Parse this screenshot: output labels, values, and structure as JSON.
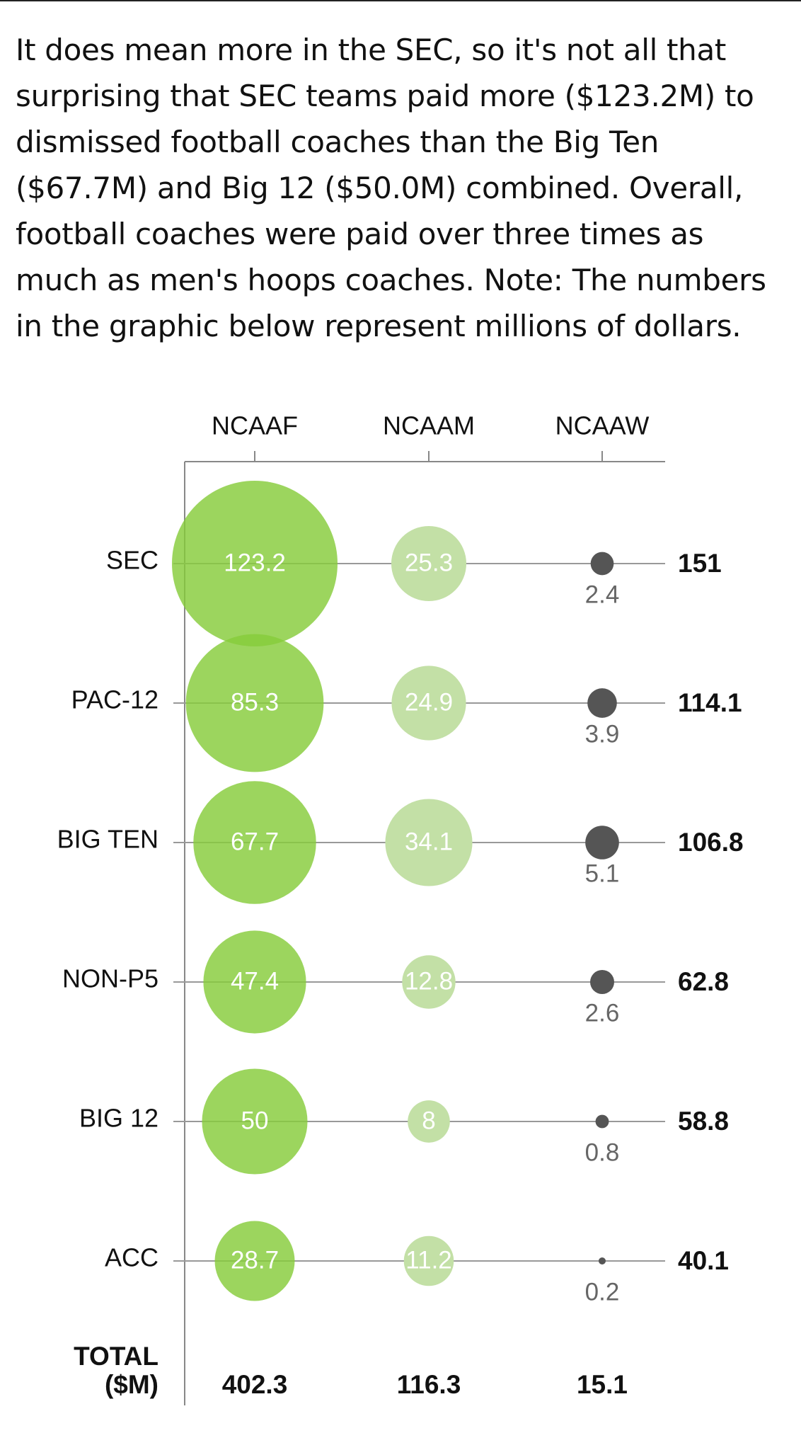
{
  "intro_text": "It does mean more in the SEC, so it's not all that surprising that SEC teams paid more ($123.2M) to dismissed football coaches than the Big Ten ($67.7M) and Big 12 ($50.0M) combined. Overall, football coaches were paid over three times as much as men's hoops coaches. Note: The numbers in the graphic below represent millions of dollars.",
  "chart_data": {
    "type": "bubble-matrix",
    "title": "",
    "categories": [
      "NCAAF",
      "NCAAM",
      "NCAAW"
    ],
    "rows": [
      {
        "name": "SEC",
        "values": [
          123.2,
          25.3,
          2.4
        ],
        "labels": [
          "123.2",
          "25.3",
          "2.4"
        ],
        "total": "151"
      },
      {
        "name": "PAC-12",
        "values": [
          85.3,
          24.9,
          3.9
        ],
        "labels": [
          "85.3",
          "24.9",
          "3.9"
        ],
        "total": "114.1"
      },
      {
        "name": "BIG TEN",
        "values": [
          67.7,
          34.1,
          5.1
        ],
        "labels": [
          "67.7",
          "34.1",
          "5.1"
        ],
        "total": "106.8"
      },
      {
        "name": "NON-P5",
        "values": [
          47.4,
          12.8,
          2.6
        ],
        "labels": [
          "47.4",
          "12.8",
          "2.6"
        ],
        "total": "62.8"
      },
      {
        "name": "BIG 12",
        "values": [
          50,
          8,
          0.8
        ],
        "labels": [
          "50",
          "8",
          "0.8"
        ],
        "total": "58.8"
      },
      {
        "name": "ACC",
        "values": [
          28.7,
          11.2,
          0.2
        ],
        "labels": [
          "28.7",
          "11.2",
          "0.2"
        ],
        "total": "40.1"
      }
    ],
    "totals_label_line1": "TOTAL",
    "totals_label_line2": "($M)",
    "column_totals": [
      "402.3",
      "116.3",
      "15.1"
    ],
    "colors": {
      "ncaaf": "#86cc3a",
      "ncaam": "#c3e0a6",
      "ncaaw": "#555555",
      "axis": "#888888",
      "row_line": "#999999"
    }
  }
}
